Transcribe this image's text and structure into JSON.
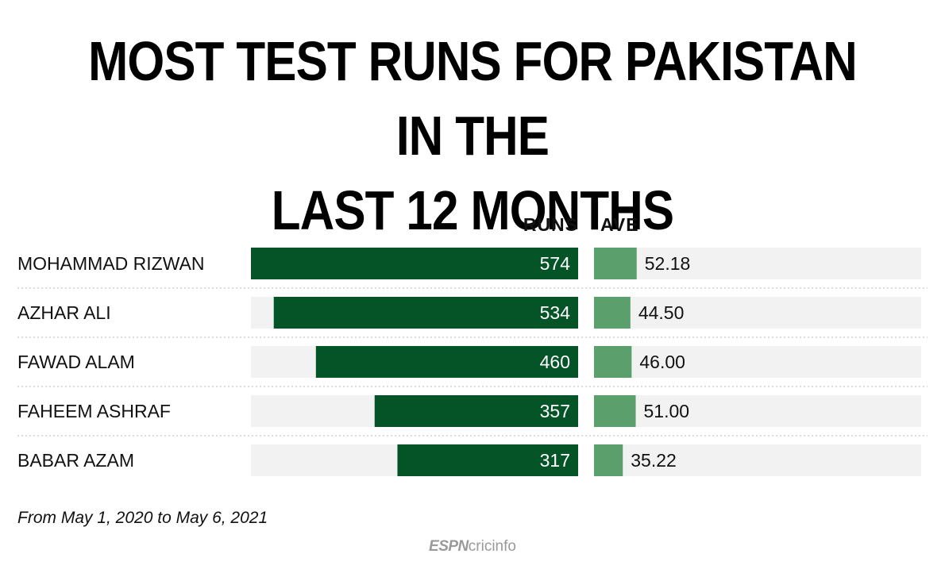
{
  "title_line1": "MOST TEST RUNS FOR PAKISTAN IN THE",
  "title_line2": "LAST 12 MONTHS",
  "footnote": "From May 1, 2020 to May 6, 2021",
  "logo": {
    "espn": "ESPN",
    "cricinfo": "cricinfo"
  },
  "colors": {
    "runs_bar": "#045428",
    "ave_bar": "#5a9f6c",
    "track": "#f2f2f2",
    "separator": "#c8c8c8"
  },
  "chart_data": {
    "type": "bar",
    "orientation": "horizontal",
    "title": "MOST TEST RUNS FOR PAKISTAN IN THE LAST 12 MONTHS",
    "columns": [
      "RUNS",
      "AVE"
    ],
    "categories": [
      "MOHAMMAD RIZWAN",
      "AZHAR ALI",
      "FAWAD ALAM",
      "FAHEEM ASHRAF",
      "BABAR AZAM"
    ],
    "series": [
      {
        "name": "RUNS",
        "values": [
          574,
          534,
          460,
          357,
          317
        ],
        "labels": [
          "574",
          "534",
          "460",
          "357",
          "317"
        ]
      },
      {
        "name": "AVE",
        "values": [
          52.18,
          44.5,
          46.0,
          51.0,
          35.22
        ],
        "labels": [
          "52.18",
          "44.50",
          "46.00",
          "51.00",
          "35.22"
        ]
      }
    ],
    "runs_max": 574,
    "ave_max": 400
  }
}
